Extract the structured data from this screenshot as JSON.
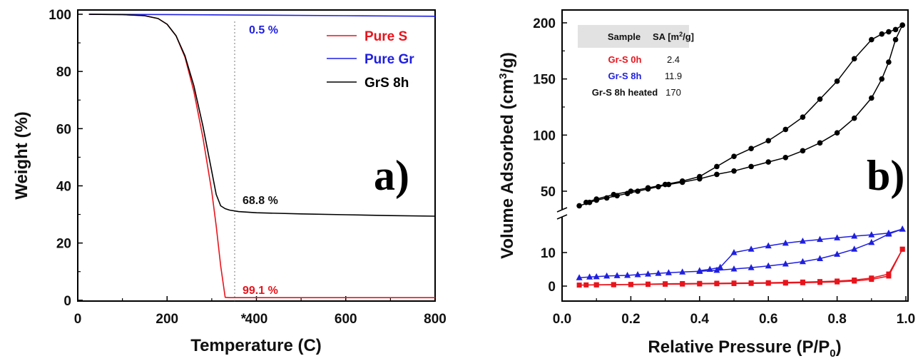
{
  "colors": {
    "red": "#e8141c",
    "blue": "#1f1fe0",
    "black": "#000000"
  },
  "panel_a": {
    "panel_label": "a)",
    "xlabel": "Temperature (C)",
    "ylabel": "Weight (%)",
    "x_ticks": [
      "0",
      "200",
      "400",
      "600",
      "800"
    ],
    "x_tick_values": [
      0,
      200,
      400,
      600,
      800
    ],
    "x_star": "*",
    "y_ticks": [
      "0",
      "20",
      "40",
      "60",
      "80",
      "100"
    ],
    "y_tick_values": [
      0,
      20,
      40,
      60,
      80,
      100
    ],
    "legend": [
      "Pure S",
      "Pure Gr",
      "GrS 8h"
    ],
    "annotations": {
      "gr_loss": "0.5 %",
      "grs_loss": "68.8 %",
      "s_loss": "99.1 %"
    }
  },
  "panel_b": {
    "panel_label": "b)",
    "xlabel_main": "Relative Pressure (P/P",
    "xlabel_sub": "0",
    "xlabel_close": ")",
    "ylabel_main": "Volume Adsorbed (cm",
    "ylabel_sup": "3",
    "ylabel_close": "/g)",
    "x_ticks": [
      "0.0",
      "0.2",
      "0.4",
      "0.6",
      "0.8",
      "1.0"
    ],
    "x_tick_values": [
      0.0,
      0.2,
      0.4,
      0.6,
      0.8,
      1.0
    ],
    "y_upper_ticks": [
      "50",
      "100",
      "150",
      "200"
    ],
    "y_upper_values": [
      50,
      100,
      150,
      200
    ],
    "y_lower_ticks": [
      "0",
      "10"
    ],
    "y_lower_values": [
      0,
      10
    ],
    "table": {
      "header_sample": "Sample",
      "header_sa": "SA [m",
      "header_sa_sup": "2",
      "header_sa_close": "/g]",
      "rows": [
        {
          "sample": "Gr-S 0h",
          "sa": "2.4"
        },
        {
          "sample": "Gr-S 8h",
          "sa": "11.9"
        },
        {
          "sample": "Gr-S 8h heated",
          "sa": "170"
        }
      ]
    }
  },
  "chart_data": [
    {
      "type": "line",
      "xlabel": "Temperature (C)",
      "ylabel": "Weight (%)",
      "xlim": [
        0,
        800
      ],
      "ylim": [
        0,
        100
      ],
      "legend_position": "top-right",
      "annotations": [
        "0.5 %",
        "68.8 %",
        "99.1 %",
        "*"
      ],
      "series": [
        {
          "name": "Pure S",
          "color": "#e8141c",
          "x": [
            25,
            100,
            150,
            180,
            200,
            220,
            240,
            260,
            280,
            300,
            310,
            320,
            330,
            340,
            400,
            500,
            600,
            700,
            800
          ],
          "y": [
            100,
            99.9,
            99.5,
            98.5,
            96.5,
            92.5,
            85,
            73,
            57,
            38,
            26,
            12,
            1,
            0.9,
            0.9,
            0.9,
            0.9,
            0.9,
            0.9
          ]
        },
        {
          "name": "Pure Gr",
          "color": "#1f1fe0",
          "x": [
            25,
            200,
            400,
            600,
            800
          ],
          "y": [
            100,
            99.9,
            99.7,
            99.5,
            99.3
          ]
        },
        {
          "name": "GrS 8h",
          "color": "#000000",
          "x": [
            25,
            100,
            150,
            180,
            200,
            220,
            240,
            260,
            280,
            300,
            310,
            320,
            330,
            340,
            360,
            400,
            500,
            600,
            700,
            800
          ],
          "y": [
            100,
            99.9,
            99.5,
            98.5,
            96.5,
            92.5,
            85.5,
            75,
            61,
            45,
            37,
            33,
            32,
            31.5,
            31,
            30.6,
            30.2,
            29.9,
            29.6,
            29.4
          ]
        }
      ]
    },
    {
      "type": "line",
      "xlabel": "Relative Pressure (P/P0)",
      "ylabel": "Volume Adsorbed (cm3/g)",
      "xlim": [
        0.0,
        1.0
      ],
      "ylim_lower": [
        -5,
        17
      ],
      "ylim_upper": [
        30,
        210
      ],
      "axis_break": true,
      "series": [
        {
          "name": "Gr-S 0h",
          "color": "#e8141c",
          "adsorption_x": [
            0.05,
            0.1,
            0.15,
            0.2,
            0.25,
            0.3,
            0.35,
            0.4,
            0.45,
            0.5,
            0.55,
            0.6,
            0.65,
            0.7,
            0.75,
            0.8,
            0.85,
            0.9,
            0.95,
            0.99
          ],
          "adsorption_y": [
            0.3,
            0.35,
            0.4,
            0.45,
            0.5,
            0.55,
            0.6,
            0.65,
            0.7,
            0.75,
            0.8,
            0.85,
            0.9,
            1.0,
            1.1,
            1.25,
            1.5,
            2.0,
            3.0,
            11
          ],
          "desorption_x": [
            0.99,
            0.95,
            0.9,
            0.85,
            0.8,
            0.75,
            0.7,
            0.65,
            0.6,
            0.55,
            0.5,
            0.45,
            0.4,
            0.35,
            0.3,
            0.25,
            0.2,
            0.15,
            0.1,
            0.07
          ],
          "desorption_y": [
            11,
            3.6,
            2.4,
            1.8,
            1.5,
            1.35,
            1.2,
            1.1,
            1.0,
            0.95,
            0.9,
            0.85,
            0.8,
            0.75,
            0.7,
            0.6,
            0.5,
            0.45,
            0.4,
            0.35
          ]
        },
        {
          "name": "Gr-S 8h",
          "color": "#1f1fe0",
          "adsorption_x": [
            0.05,
            0.08,
            0.1,
            0.13,
            0.16,
            0.19,
            0.22,
            0.25,
            0.28,
            0.31,
            0.35,
            0.4,
            0.45,
            0.5,
            0.55,
            0.6,
            0.65,
            0.7,
            0.75,
            0.8,
            0.85,
            0.9,
            0.95,
            0.99
          ],
          "adsorption_y": [
            2.5,
            2.7,
            2.8,
            3.0,
            3.1,
            3.2,
            3.4,
            3.6,
            3.8,
            4.0,
            4.2,
            4.4,
            4.7,
            5.1,
            5.5,
            6.0,
            6.6,
            7.3,
            8.2,
            9.5,
            11.0,
            13.0,
            15.5,
            17.0
          ],
          "desorption_x": [
            0.99,
            0.95,
            0.9,
            0.85,
            0.8,
            0.75,
            0.7,
            0.65,
            0.6,
            0.55,
            0.5,
            0.46,
            0.43,
            0.4
          ],
          "desorption_y": [
            17.0,
            15.8,
            15.3,
            14.9,
            14.4,
            13.9,
            13.4,
            12.8,
            12.0,
            11.0,
            10.0,
            5.6,
            5.0,
            4.6
          ]
        },
        {
          "name": "Gr-S 8h heated",
          "color": "#000000",
          "adsorption_x": [
            0.05,
            0.08,
            0.1,
            0.13,
            0.16,
            0.19,
            0.22,
            0.25,
            0.28,
            0.31,
            0.35,
            0.4,
            0.45,
            0.5,
            0.55,
            0.6,
            0.65,
            0.7,
            0.75,
            0.8,
            0.85,
            0.9,
            0.93,
            0.95,
            0.97,
            0.99
          ],
          "adsorption_y": [
            37,
            40,
            42,
            44,
            46,
            48,
            50,
            52,
            54,
            56,
            58,
            61,
            65,
            68,
            72,
            76,
            80,
            86,
            93,
            102,
            115,
            133,
            150,
            165,
            185,
            198
          ],
          "desorption_x": [
            0.99,
            0.97,
            0.95,
            0.93,
            0.9,
            0.85,
            0.8,
            0.75,
            0.7,
            0.65,
            0.6,
            0.55,
            0.5,
            0.45,
            0.4,
            0.35,
            0.3,
            0.25,
            0.2,
            0.15,
            0.1,
            0.07
          ],
          "desorption_y": [
            198,
            194,
            192,
            190,
            185,
            168,
            148,
            132,
            116,
            105,
            95,
            88,
            81,
            72,
            63,
            59,
            56,
            53,
            50,
            47,
            43,
            40
          ]
        }
      ],
      "table": [
        {
          "sample": "Gr-S 0h",
          "sa_m2_per_g": 2.4
        },
        {
          "sample": "Gr-S 8h",
          "sa_m2_per_g": 11.9
        },
        {
          "sample": "Gr-S 8h heated",
          "sa_m2_per_g": 170
        }
      ]
    }
  ]
}
